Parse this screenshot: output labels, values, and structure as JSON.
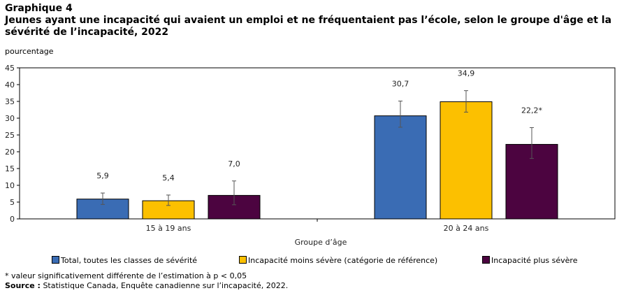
{
  "header": {
    "figure_label": "Graphique 4",
    "title": "Jeunes ayant une incapacité qui avaient un emploi et ne fréquentaient pas l’école, selon le groupe d'âge et la sévérité de l’incapacité, 2022"
  },
  "chart_data": {
    "type": "bar",
    "title": "Jeunes ayant une incapacité qui avaient un emploi et ne fréquentaient pas l’école, selon le groupe d'âge et la sévérité de l’incapacité, 2022",
    "ylabel": "pourcentage",
    "xlabel": "Groupe d’âge",
    "ylim": [
      0,
      45
    ],
    "yticks": [
      0,
      5,
      10,
      15,
      20,
      25,
      30,
      35,
      40,
      45
    ],
    "categories": [
      "15 à 19 ans",
      "20 à 24 ans"
    ],
    "legend_position": "bottom",
    "series": [
      {
        "name": "Total, toutes les classes de sévérité",
        "color": "#3a6cb4",
        "values": [
          5.9,
          30.7
        ],
        "labels": [
          "5,9",
          "30,7"
        ],
        "error_low": [
          4.3,
          27.3
        ],
        "error_high": [
          7.7,
          35.1
        ]
      },
      {
        "name": "Incapacité moins sévère (catégorie de référence)",
        "color": "#fcc000",
        "values": [
          5.4,
          34.9
        ],
        "labels": [
          "5,4",
          "34,9"
        ],
        "error_low": [
          4.0,
          31.8
        ],
        "error_high": [
          7.1,
          38.2
        ]
      },
      {
        "name": "Incapacité plus sévère",
        "color": "#4c0440",
        "values": [
          7.0,
          22.2
        ],
        "labels": [
          "7,0",
          "22,2*"
        ],
        "error_low": [
          4.2,
          18.0
        ],
        "error_high": [
          11.3,
          27.2
        ]
      }
    ]
  },
  "footer": {
    "note": "* valeur significativement différente de l’estimation à p < 0,05",
    "source_label": "Source :",
    "source_text": " Statistique Canada, Enquête canadienne sur l’incapacité, 2022."
  }
}
